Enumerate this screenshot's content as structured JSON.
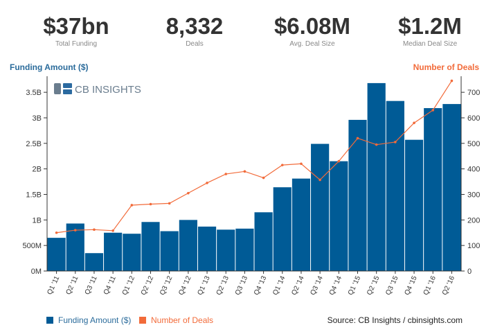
{
  "kpis": [
    {
      "value": "$37bn",
      "label": "Total Funding"
    },
    {
      "value": "8,332",
      "label": "Deals"
    },
    {
      "value": "$6.08M",
      "label": "Avg. Deal Size"
    },
    {
      "value": "$1.2M",
      "label": "Median Deal Size"
    }
  ],
  "logo": {
    "text": "CB INSIGHTS"
  },
  "colors": {
    "bars": "#005b96",
    "line": "#f26b3a",
    "left_axis_title": "#2a6b9b",
    "right_axis_title": "#f26b3a"
  },
  "chart_data": {
    "type": "bar",
    "categories": [
      "Q1 '11",
      "Q2 '11",
      "Q3 '11",
      "Q4 '11",
      "Q1 '12",
      "Q2 '12",
      "Q3 '12",
      "Q4 '12",
      "Q1 '13",
      "Q2 '13",
      "Q3 '13",
      "Q4 '13",
      "Q1 '14",
      "Q2 '14",
      "Q3 '14",
      "Q4 '14",
      "Q1 '15",
      "Q2 '15",
      "Q3 '15",
      "Q4 '15",
      "Q1 '16",
      "Q2 '16"
    ],
    "series": [
      {
        "name": "Funding Amount ($)",
        "type": "bar",
        "axis": "left",
        "values": [
          0.65,
          0.93,
          0.35,
          0.75,
          0.73,
          0.96,
          0.78,
          1.0,
          0.87,
          0.81,
          0.83,
          1.15,
          1.64,
          1.81,
          2.49,
          2.15,
          2.96,
          3.68,
          3.33,
          2.57,
          3.19,
          3.27
        ]
      },
      {
        "name": "Number of Deals",
        "type": "line",
        "axis": "right",
        "values": [
          150,
          160,
          162,
          158,
          258,
          262,
          265,
          305,
          345,
          380,
          390,
          365,
          415,
          420,
          357,
          430,
          520,
          495,
          505,
          580,
          630,
          745
        ]
      }
    ],
    "y_left": {
      "title": "Funding Amount ($)",
      "ticks": [
        0,
        0.5,
        1,
        1.5,
        2,
        2.5,
        3,
        3.5
      ],
      "tick_labels": [
        "0M",
        "500M",
        "1B",
        "1.5B",
        "2B",
        "2.5B",
        "3B",
        "3.5B"
      ],
      "range": [
        0,
        3.95
      ]
    },
    "y_right": {
      "title": "Number of Deals",
      "ticks": [
        0,
        100,
        200,
        300,
        400,
        500,
        600,
        700
      ],
      "range": [
        0,
        790
      ]
    },
    "legend": [
      {
        "label": "Funding Amount ($)",
        "color": "#005b96"
      },
      {
        "label": "Number of Deals",
        "color": "#f26b3a"
      }
    ],
    "legend_position": "bottom-left",
    "source": "Source: CB Insights / cbinsights.com"
  }
}
